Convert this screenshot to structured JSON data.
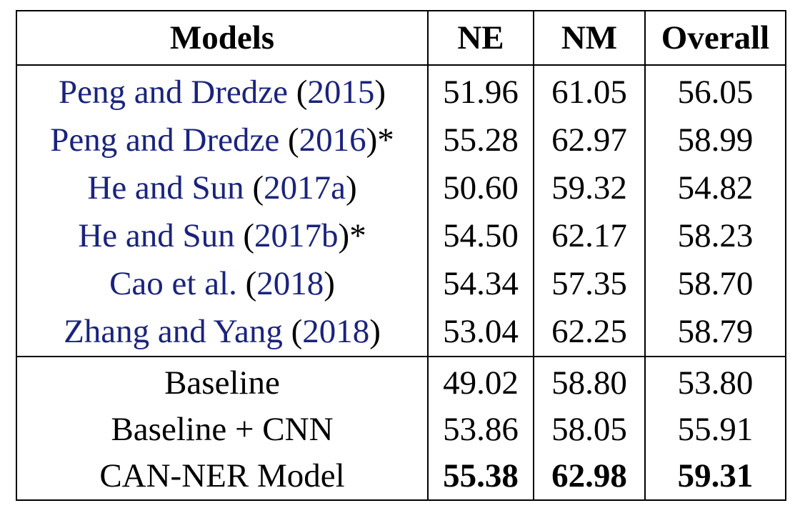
{
  "table": {
    "headers": [
      "Models",
      "NE",
      "NM",
      "Overall"
    ],
    "prior_rows": [
      {
        "name": "Peng and Dredze",
        "year": "2015",
        "suffix": "",
        "ne": "51.96",
        "nm": "61.05",
        "overall": "56.05"
      },
      {
        "name": "Peng and Dredze",
        "year": "2016",
        "suffix": "*",
        "ne": "55.28",
        "nm": "62.97",
        "overall": "58.99"
      },
      {
        "name": "He and Sun",
        "year": "2017a",
        "suffix": "",
        "ne": "50.60",
        "nm": "59.32",
        "overall": "54.82"
      },
      {
        "name": "He and Sun",
        "year": "2017b",
        "suffix": "*",
        "ne": "54.50",
        "nm": "62.17",
        "overall": "58.23"
      },
      {
        "name": "Cao et al.",
        "year": "2018",
        "suffix": "",
        "ne": "54.34",
        "nm": "57.35",
        "overall": "58.70"
      },
      {
        "name": "Zhang and Yang",
        "year": "2018",
        "suffix": "",
        "ne": "53.04",
        "nm": "62.25",
        "overall": "58.79"
      }
    ],
    "our_rows": [
      {
        "name": "Baseline",
        "ne": "49.02",
        "nm": "58.80",
        "overall": "53.80",
        "bold": false
      },
      {
        "name": "Baseline + CNN",
        "ne": "53.86",
        "nm": "58.05",
        "overall": "55.91",
        "bold": false
      },
      {
        "name": "CAN-NER Model",
        "ne": "55.38",
        "nm": "62.98",
        "overall": "59.31",
        "bold": true
      }
    ]
  }
}
